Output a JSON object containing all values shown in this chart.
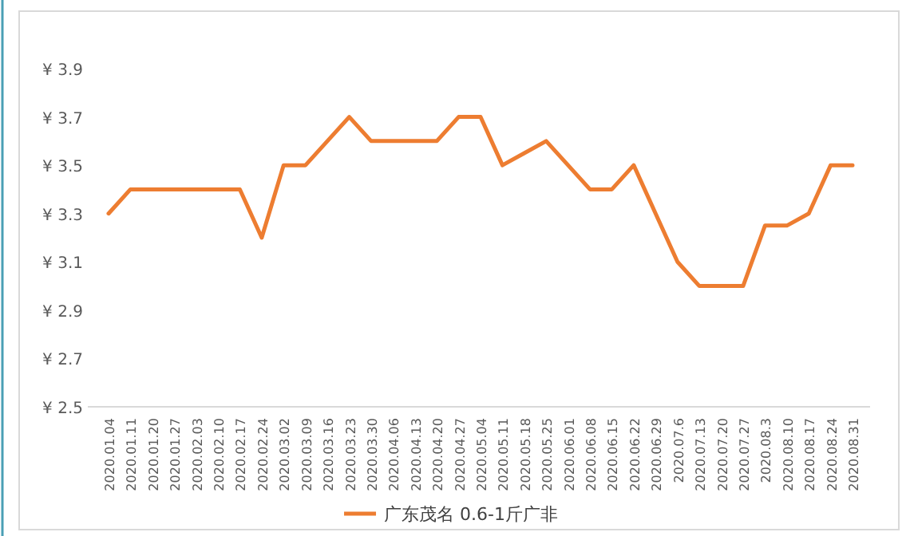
{
  "chart_data": {
    "type": "line",
    "categories": [
      "2020.01.04",
      "2020.01.11",
      "2020.01.20",
      "2020.01.27",
      "2020.02.03",
      "2020.02.10",
      "2020.02.17",
      "2020.02.24",
      "2020.03.02",
      "2020.03.09",
      "2020.03.16",
      "2020.03.23",
      "2020.03.30",
      "2020.04.06",
      "2020.04.13",
      "2020.04.20",
      "2020.04.27",
      "2020.05.04",
      "2020.05.11",
      "2020.05.18",
      "2020.05.25",
      "2020.06.01",
      "2020.06.08",
      "2020.06.15",
      "2020.06.22",
      "2020.06.29",
      "2020.07.6",
      "2020.07.13",
      "2020.07.20",
      "2020.07.27",
      "2020.08.3",
      "2020.08.10",
      "2020.08.17",
      "2020.08.24",
      "2020.08.31"
    ],
    "series": [
      {
        "name": "广东茂名 0.6-1斤广非",
        "color": "#ed7d31",
        "values": [
          3.3,
          3.4,
          3.4,
          3.4,
          3.4,
          3.4,
          3.4,
          3.2,
          3.5,
          3.5,
          3.6,
          3.7,
          3.6,
          3.6,
          3.6,
          3.6,
          3.7,
          3.7,
          3.5,
          3.55,
          3.6,
          3.5,
          3.4,
          3.4,
          3.5,
          3.3,
          3.1,
          3.0,
          3.0,
          3.0,
          3.25,
          3.25,
          3.3,
          3.5,
          3.5
        ]
      }
    ],
    "ylim": [
      2.5,
      3.9
    ],
    "yticks": [
      {
        "value": 2.5,
        "label": "¥ 2.5"
      },
      {
        "value": 2.7,
        "label": "¥ 2.7"
      },
      {
        "value": 2.9,
        "label": "¥ 2.9"
      },
      {
        "value": 3.1,
        "label": "¥ 3.1"
      },
      {
        "value": 3.3,
        "label": "¥ 3.3"
      },
      {
        "value": 3.5,
        "label": "¥ 3.5"
      },
      {
        "value": 3.7,
        "label": "¥ 3.7"
      },
      {
        "value": 3.9,
        "label": "¥ 3.9"
      }
    ],
    "grid": false,
    "legend": "bottom",
    "marker": "none",
    "line_style": "solid"
  }
}
